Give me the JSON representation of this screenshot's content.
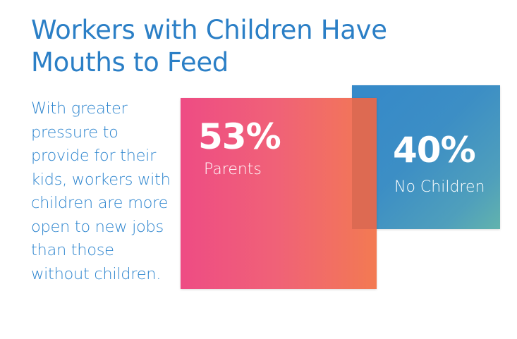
{
  "title": "Workers with Children Have Mouths to Feed",
  "body": "With greater pressure to provide for their kids, workers with children are more open to new jobs than those without children.",
  "chart_data": {
    "type": "area-squares",
    "title": "Workers with Children Have Mouths to Feed",
    "categories": [
      "Parents",
      "No Children"
    ],
    "values": [
      53,
      40
    ],
    "value_labels": [
      "53%",
      "40%"
    ],
    "colors": [
      "#f06277",
      "#3c8ec5"
    ]
  }
}
